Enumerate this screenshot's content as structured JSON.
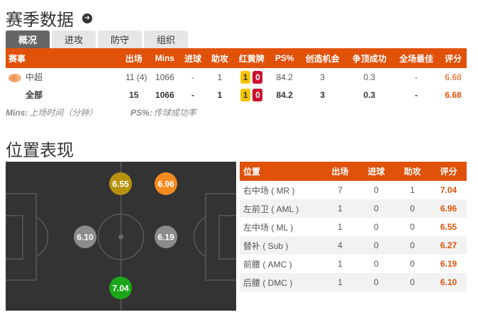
{
  "season": {
    "title": "赛季数据",
    "arrow_icon": "arrow-right-circle-icon",
    "tabs": [
      {
        "label": "概况",
        "active": true
      },
      {
        "label": "进攻"
      },
      {
        "label": "防守"
      },
      {
        "label": "组织"
      }
    ],
    "columns": [
      "赛事",
      "出场",
      "Mins",
      "进球",
      "助攻",
      "红黄牌",
      "PS%",
      "创造机会",
      "争顶成功",
      "全场最佳",
      "评分"
    ],
    "rows": [
      {
        "competition": "中超",
        "apps": "11 (4)",
        "mins": "1066",
        "goals": "-",
        "assists": "1",
        "yellow": "1",
        "red": "0",
        "ps": "84.2",
        "key_passes": "3",
        "aerials": "0.3",
        "motm": "-",
        "rating": "6.68"
      },
      {
        "competition": "全部",
        "apps": "15",
        "mins": "1066",
        "goals": "-",
        "assists": "1",
        "yellow": "1",
        "red": "0",
        "ps": "84.2",
        "key_passes": "3",
        "aerials": "0.3",
        "motm": "-",
        "rating": "6.68"
      }
    ],
    "notes": [
      {
        "key": "Mins:",
        "text": "上场时间（分钟）"
      },
      {
        "key": "PS%:",
        "text": "传球成功率"
      }
    ]
  },
  "positions": {
    "title": "位置表现",
    "columns": [
      "位置",
      "出场",
      "进球",
      "助攻",
      "评分"
    ],
    "rows": [
      {
        "pos": "右中场 ( MR )",
        "apps": "7",
        "goals": "0",
        "assists": "1",
        "rating": "7.04"
      },
      {
        "pos": "左前卫 ( AML )",
        "apps": "1",
        "goals": "0",
        "assists": "0",
        "rating": "6.96"
      },
      {
        "pos": "左中场 ( ML )",
        "apps": "1",
        "goals": "0",
        "assists": "0",
        "rating": "6.55"
      },
      {
        "pos": "替补 ( Sub )",
        "apps": "4",
        "goals": "0",
        "assists": "0",
        "rating": "6.27"
      },
      {
        "pos": "前腰 ( AMC )",
        "apps": "1",
        "goals": "0",
        "assists": "0",
        "rating": "6.19"
      },
      {
        "pos": "后腰 ( DMC )",
        "apps": "1",
        "goals": "0",
        "assists": "0",
        "rating": "6.10"
      }
    ],
    "pitch_markers": [
      {
        "pos": "ML",
        "rating": "6.55",
        "color": "#b8920f"
      },
      {
        "pos": "AML",
        "rating": "6.96",
        "color": "#f58a1f"
      },
      {
        "pos": "DMC",
        "rating": "6.10",
        "color": "#8c8c8c"
      },
      {
        "pos": "AMC",
        "rating": "6.19",
        "color": "#8c8c8c"
      },
      {
        "pos": "MR",
        "rating": "7.04",
        "color": "#1aa81a"
      }
    ]
  },
  "colors": {
    "accent": "#e0510a",
    "rating": "#e0510a"
  }
}
